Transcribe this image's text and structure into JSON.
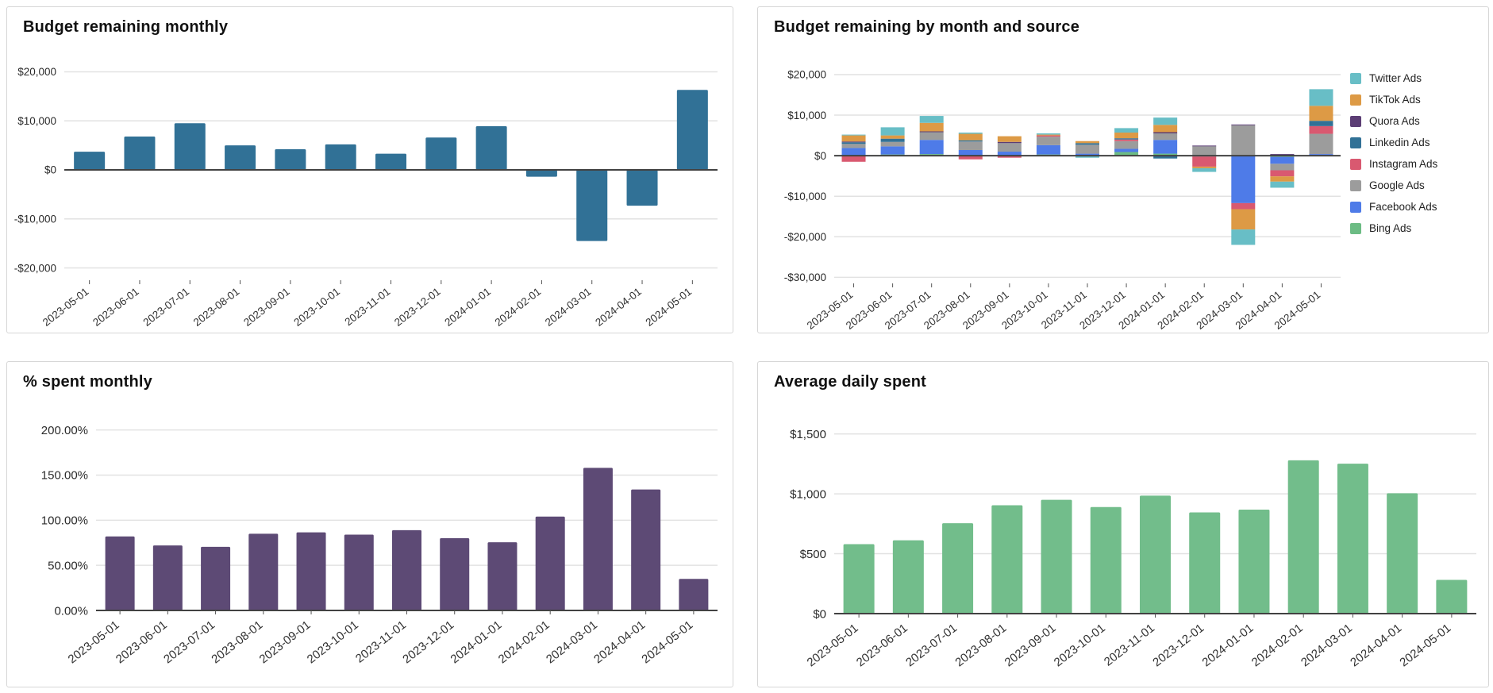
{
  "page": {
    "background": "#ffffff",
    "card_border": "#d6d6d6",
    "grid_color": "#e2e2e2",
    "axis_color": "#424242",
    "tick_label_color": "#2b2b2b"
  },
  "chart_data": [
    {
      "id": "budget-remaining-monthly",
      "type": "bar",
      "title": "Budget remaining monthly",
      "bar_color": "#317196",
      "categories": [
        "2023-05-01",
        "2023-06-01",
        "2023-07-01",
        "2023-08-01",
        "2023-09-01",
        "2023-10-01",
        "2023-11-01",
        "2023-12-01",
        "2024-01-01",
        "2024-02-01",
        "2024-03-01",
        "2024-04-01",
        "2024-05-01"
      ],
      "values": [
        3700,
        6800,
        9500,
        5000,
        4200,
        5200,
        3300,
        6600,
        8900,
        -1400,
        -14500,
        -7300,
        16300
      ],
      "ylabel": "",
      "xlabel": "",
      "y_ticks": [
        {
          "value": 20000,
          "label": "$20,000"
        },
        {
          "value": 10000,
          "label": "$10,000"
        },
        {
          "value": 0,
          "label": "$0"
        },
        {
          "value": -10000,
          "label": "-$10,000"
        },
        {
          "value": -20000,
          "label": "-$20,000"
        }
      ],
      "ylim": [
        -22500,
        22500
      ],
      "grid": true,
      "legend_position": "none"
    },
    {
      "id": "budget-remaining-by-month-and-source",
      "type": "stacked-bar",
      "title": "Budget remaining by month and source",
      "categories": [
        "2023-05-01",
        "2023-06-01",
        "2023-07-01",
        "2023-08-01",
        "2023-09-01",
        "2023-10-01",
        "2023-11-01",
        "2023-12-01",
        "2024-01-01",
        "2024-02-01",
        "2024-03-01",
        "2024-04-01",
        "2024-05-01"
      ],
      "series": [
        {
          "name": "Bing Ads",
          "color": "#6cbc84",
          "values": [
            100,
            300,
            400,
            0,
            0,
            300,
            100,
            900,
            500,
            0,
            0,
            -300,
            100
          ]
        },
        {
          "name": "Facebook Ads",
          "color": "#4e7be8",
          "values": [
            1800,
            2000,
            3500,
            1400,
            1000,
            2300,
            400,
            800,
            3400,
            -200,
            -11700,
            -1700,
            300
          ]
        },
        {
          "name": "Google Ads",
          "color": "#9c9c9c",
          "values": [
            1000,
            1100,
            1900,
            2100,
            2100,
            2100,
            2200,
            1900,
            1600,
            2300,
            7500,
            -1600,
            5000
          ]
        },
        {
          "name": "Instagram Ads",
          "color": "#d95970",
          "values": [
            -1500,
            0,
            0,
            -900,
            -500,
            300,
            0,
            400,
            0,
            -2500,
            -1500,
            -1500,
            1900
          ]
        },
        {
          "name": "Linkedin Ads",
          "color": "#317196",
          "values": [
            400,
            800,
            0,
            300,
            0,
            0,
            400,
            300,
            -700,
            0,
            0,
            300,
            1300
          ]
        },
        {
          "name": "Quora Ads",
          "color": "#5c3e75",
          "values": [
            200,
            0,
            200,
            0,
            300,
            0,
            0,
            0,
            300,
            200,
            200,
            100,
            0
          ]
        },
        {
          "name": "TikTok Ads",
          "color": "#dd9a45",
          "values": [
            1500,
            800,
            2100,
            1600,
            1400,
            200,
            500,
            1400,
            1800,
            -400,
            -5000,
            -1300,
            3700
          ]
        },
        {
          "name": "Twitter Ads",
          "color": "#68bec6",
          "values": [
            200,
            2000,
            1700,
            300,
            0,
            300,
            -500,
            1100,
            1800,
            -900,
            -3800,
            -1500,
            4100
          ]
        }
      ],
      "stacking": "bottom-to-top in listed order",
      "legend_position": "right",
      "legend_order": "reversed",
      "y_ticks": [
        {
          "value": 20000,
          "label": "$20,000"
        },
        {
          "value": 10000,
          "label": "$10,000"
        },
        {
          "value": 0,
          "label": "$0"
        },
        {
          "value": -10000,
          "label": "-$10,000"
        },
        {
          "value": -20000,
          "label": "-$20,000"
        },
        {
          "value": -30000,
          "label": "-$30,000"
        }
      ],
      "ylim": [
        -31500,
        24500
      ],
      "grid": true
    },
    {
      "id": "pct-spent-monthly",
      "type": "bar",
      "title": "% spent monthly",
      "bar_color": "#5d4a75",
      "categories": [
        "2023-05-01",
        "2023-06-01",
        "2023-07-01",
        "2023-08-01",
        "2023-09-01",
        "2023-10-01",
        "2023-11-01",
        "2023-12-01",
        "2024-01-01",
        "2024-02-01",
        "2024-03-01",
        "2024-04-01",
        "2024-05-01"
      ],
      "values": [
        82,
        72,
        70.5,
        85,
        86.5,
        84,
        89,
        80,
        75.5,
        104,
        158,
        134,
        35
      ],
      "value_unit": "percent",
      "y_ticks": [
        {
          "value": 200,
          "label": "200.00%"
        },
        {
          "value": 150,
          "label": "150.00%"
        },
        {
          "value": 100,
          "label": "100.00%"
        },
        {
          "value": 50,
          "label": "50.00%"
        },
        {
          "value": 0,
          "label": "0.00%"
        }
      ],
      "ylim": [
        0,
        212
      ],
      "grid": true,
      "legend_position": "none"
    },
    {
      "id": "average-daily-spent",
      "type": "bar",
      "title": "Average daily spent",
      "bar_color": "#72bd8b",
      "categories": [
        "2023-05-01",
        "2023-06-01",
        "2023-07-01",
        "2023-08-01",
        "2023-09-01",
        "2023-10-01",
        "2023-11-01",
        "2023-12-01",
        "2024-01-01",
        "2024-02-01",
        "2024-03-01",
        "2024-04-01",
        "2024-05-01"
      ],
      "values": [
        580,
        612,
        755,
        905,
        950,
        890,
        985,
        845,
        868,
        1280,
        1252,
        1005,
        282
      ],
      "y_ticks": [
        {
          "value": 1500,
          "label": "$1,500"
        },
        {
          "value": 1000,
          "label": "$1,000"
        },
        {
          "value": 500,
          "label": "$500"
        },
        {
          "value": 0,
          "label": "$0"
        }
      ],
      "ylim": [
        0,
        1690
      ],
      "grid": true,
      "legend_position": "none"
    }
  ]
}
